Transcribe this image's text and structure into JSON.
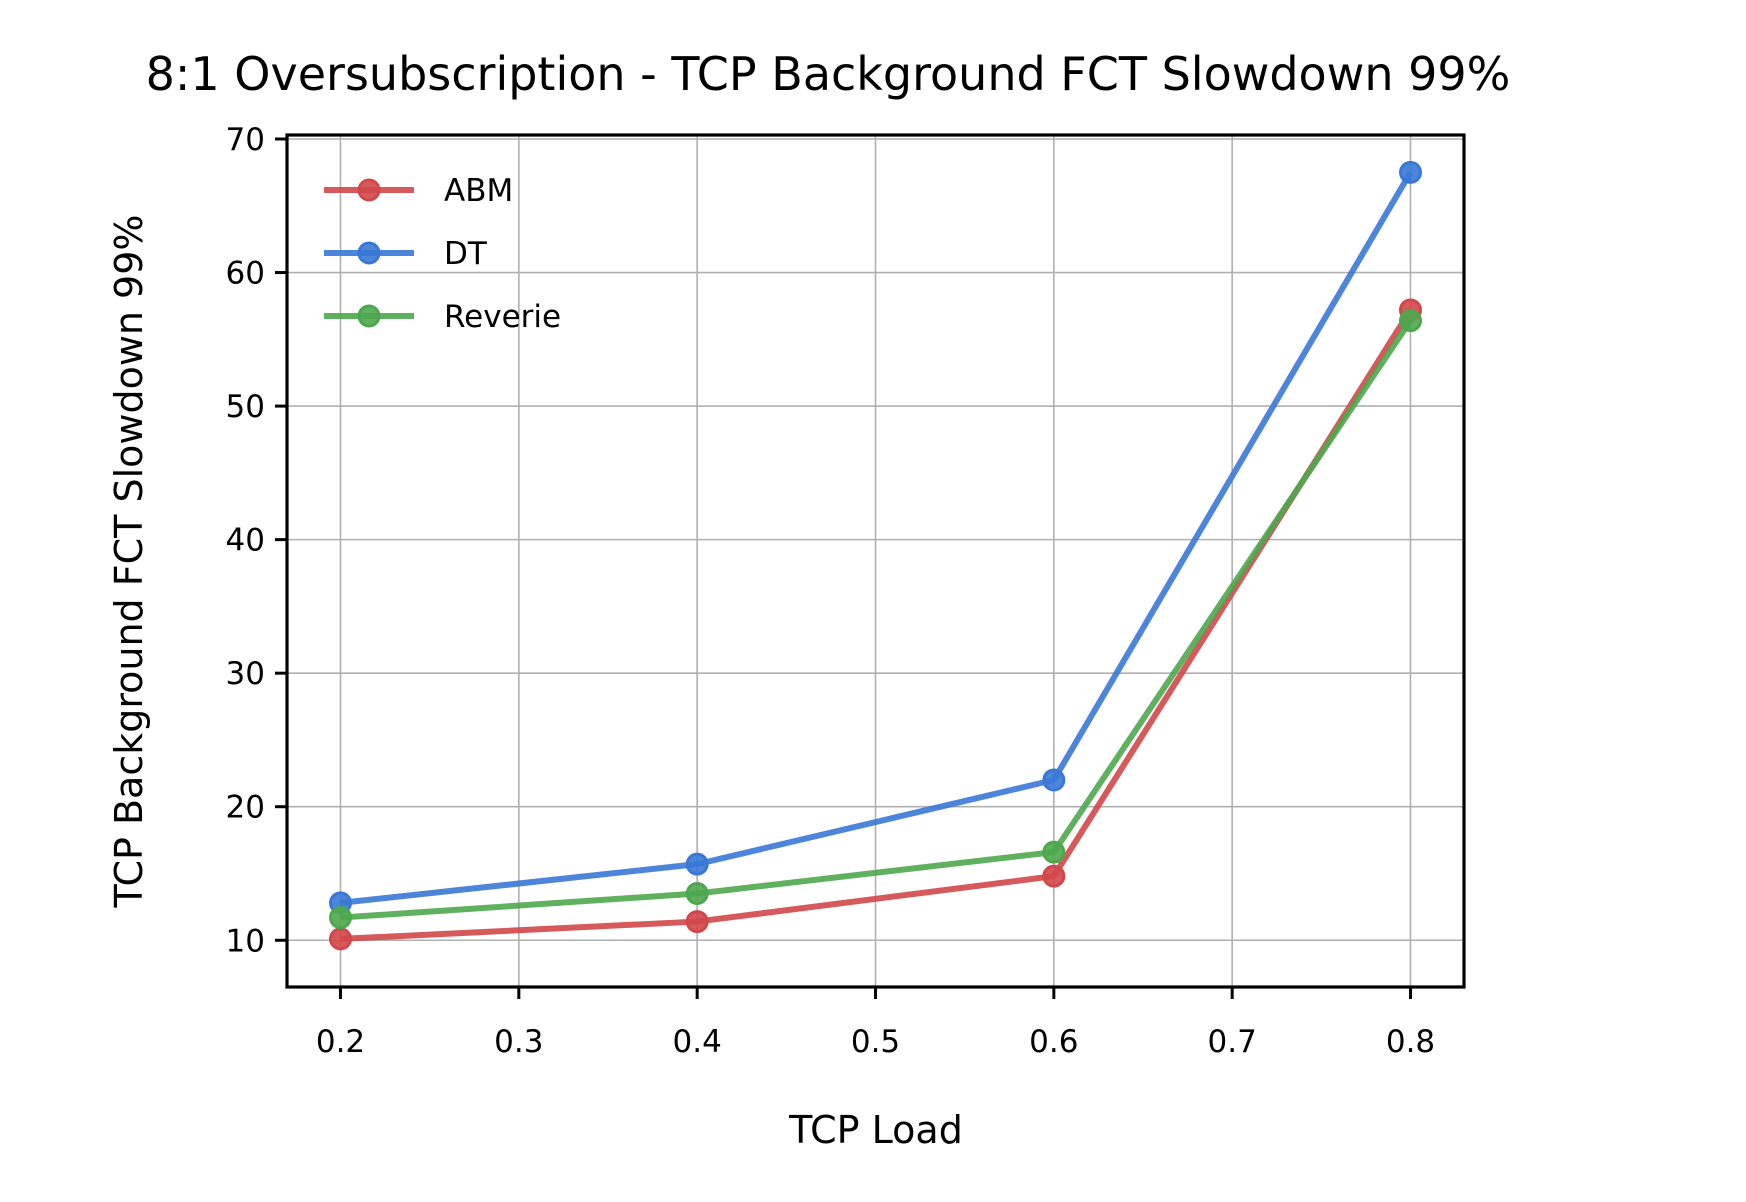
{
  "chart_data": {
    "type": "line",
    "title": "8:1 Oversubscription - TCP Background FCT Slowdown 99%",
    "xlabel": "TCP Load",
    "ylabel": "TCP Background FCT Slowdown 99%",
    "x": [
      0.2,
      0.4,
      0.6,
      0.8
    ],
    "xlim": [
      0.17,
      0.83
    ],
    "ylim": [
      6.5,
      70.3
    ],
    "xticks": [
      0.2,
      0.3,
      0.4,
      0.5,
      0.6,
      0.7,
      0.8
    ],
    "xtick_labels": [
      "0.2",
      "0.3",
      "0.4",
      "0.5",
      "0.6",
      "0.7",
      "0.8"
    ],
    "yticks": [
      10,
      20,
      30,
      40,
      50,
      60,
      70
    ],
    "ytick_labels": [
      "10",
      "20",
      "30",
      "40",
      "50",
      "60",
      "70"
    ],
    "grid": true,
    "legend_position": "top-left",
    "series": [
      {
        "name": "ABM",
        "color": "#d1474a",
        "values": [
          10.1,
          11.4,
          14.8,
          57.2
        ]
      },
      {
        "name": "DT",
        "color": "#3a78d6",
        "values": [
          12.8,
          15.7,
          22.0,
          67.5
        ]
      },
      {
        "name": "Reverie",
        "color": "#4ea74e",
        "values": [
          11.7,
          13.5,
          16.6,
          56.4
        ]
      }
    ]
  }
}
